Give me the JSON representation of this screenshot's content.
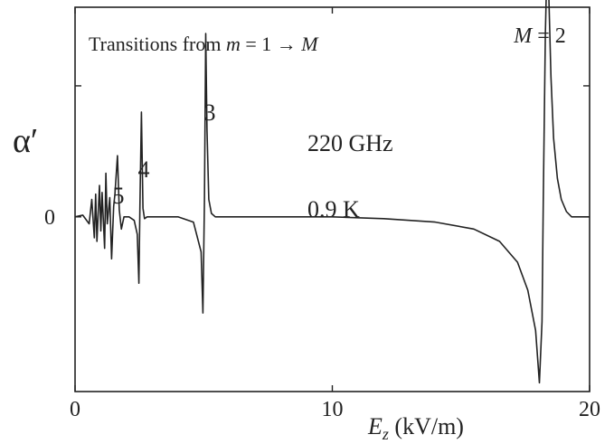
{
  "chart_data": {
    "type": "line",
    "title": "Transitions from m = 1 → M",
    "title_parts": {
      "prefix": "Transitions from ",
      "m": "m",
      "eq": " = 1 → ",
      "M": "M"
    },
    "xlabel": "E_z (kV/m)",
    "xlabel_parts": {
      "E": "E",
      "sub": "z",
      "units": " (kV/m)"
    },
    "ylabel": "α′",
    "xlim": [
      0,
      20
    ],
    "ylim": [
      -1.0,
      1.2
    ],
    "x_ticks": [
      0,
      10,
      20
    ],
    "x_tick_labels": [
      "0",
      "10",
      "20"
    ],
    "y_ticks": [
      0
    ],
    "y_tick_labels": [
      "0"
    ],
    "grid": false,
    "annotations": [
      {
        "text": "220 GHz",
        "kind": "plain"
      },
      {
        "text": "0.9 K",
        "kind": "plain"
      },
      {
        "text": "3",
        "kind": "peak",
        "x": 5.1
      },
      {
        "text": "4",
        "kind": "peak",
        "x": 2.5
      },
      {
        "text": "5",
        "kind": "peak",
        "x": 1.6
      },
      {
        "text": "M = 2",
        "kind": "peak",
        "x": 18.4
      }
    ],
    "series": [
      {
        "color": "#222222",
        "x": [
          0.0,
          0.3,
          0.55,
          0.65,
          0.75,
          0.8,
          0.85,
          0.95,
          1.0,
          1.05,
          1.15,
          1.2,
          1.25,
          1.35,
          1.42,
          1.5,
          1.55,
          1.65,
          1.72,
          1.8,
          1.9,
          2.1,
          2.3,
          2.42,
          2.48,
          2.52,
          2.58,
          2.64,
          2.7,
          2.8,
          3.0,
          4.0,
          4.6,
          4.9,
          4.97,
          5.03,
          5.08,
          5.13,
          5.2,
          5.3,
          5.45,
          5.7,
          6.0,
          8.0,
          10.0,
          12.0,
          14.0,
          15.5,
          16.5,
          17.2,
          17.6,
          17.9,
          18.05,
          18.15,
          18.2,
          18.28,
          18.35,
          18.42,
          18.5,
          18.6,
          18.75,
          18.9,
          19.1,
          19.3,
          19.5,
          19.8,
          20.0
        ],
        "values": [
          0.0,
          0.01,
          -0.04,
          0.1,
          -0.12,
          0.13,
          -0.14,
          0.18,
          -0.08,
          0.14,
          -0.18,
          0.25,
          -0.04,
          0.11,
          -0.24,
          0.06,
          0.13,
          0.35,
          0.04,
          -0.07,
          0.0,
          0.0,
          -0.02,
          -0.1,
          -0.38,
          0.05,
          0.6,
          0.05,
          -0.01,
          0.0,
          0.0,
          0.0,
          -0.03,
          -0.2,
          -0.55,
          0.1,
          1.05,
          0.5,
          0.1,
          0.02,
          0.0,
          0.0,
          0.0,
          0.0,
          0.0,
          -0.01,
          -0.03,
          -0.07,
          -0.14,
          -0.26,
          -0.42,
          -0.65,
          -0.95,
          -0.6,
          0.1,
          1.05,
          1.5,
          1.25,
          0.8,
          0.45,
          0.22,
          0.1,
          0.03,
          0.0,
          0.0,
          0.0,
          0.0
        ]
      }
    ]
  }
}
